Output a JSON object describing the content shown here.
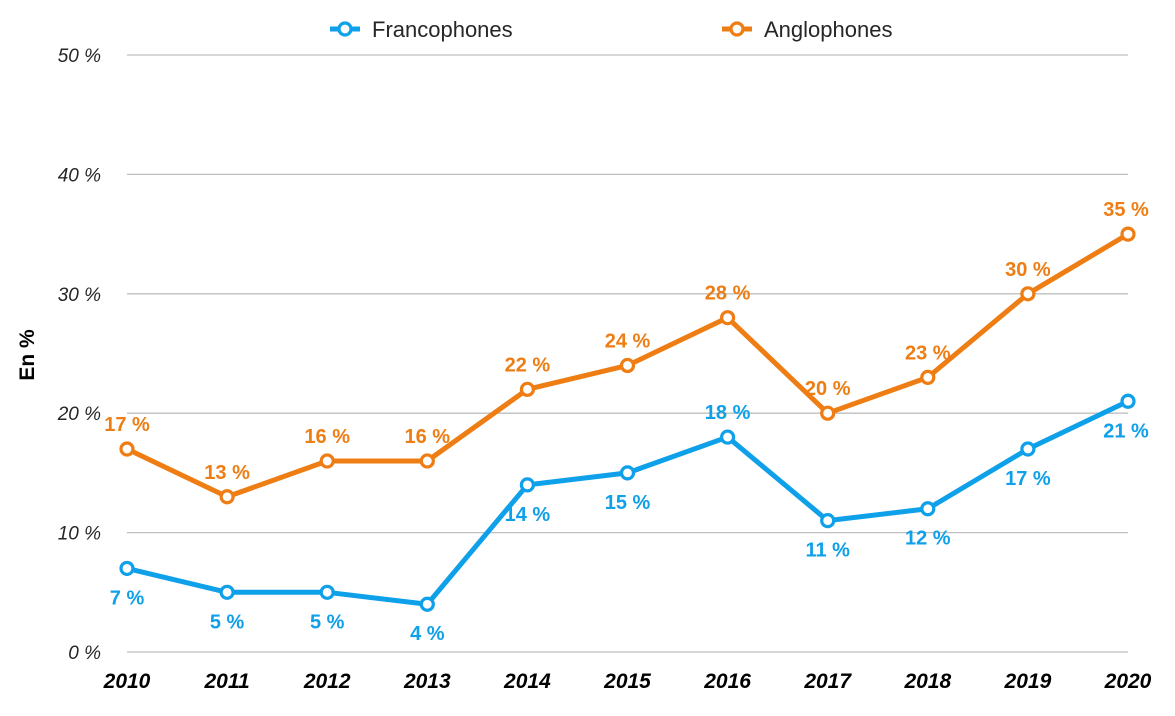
{
  "chart_data": {
    "type": "line",
    "categories": [
      "2010",
      "2011",
      "2012",
      "2013",
      "2014",
      "2015",
      "2016",
      "2017",
      "2018",
      "2019",
      "2020"
    ],
    "series": [
      {
        "name": "Francophones",
        "color": "#0FA0EA",
        "values": [
          7,
          5,
          5,
          4,
          14,
          15,
          18,
          11,
          12,
          17,
          21
        ],
        "labels": [
          "7 %",
          "5 %",
          "5 %",
          "4 %",
          "14 %",
          "15 %",
          "18 %",
          "11 %",
          "12 %",
          "17 %",
          "21 %"
        ],
        "label_position": [
          "below",
          "below",
          "below",
          "below",
          "below",
          "below",
          "above",
          "below",
          "below",
          "below",
          "below"
        ]
      },
      {
        "name": "Anglophones",
        "color": "#EE7D14",
        "values": [
          17,
          13,
          16,
          16,
          22,
          24,
          28,
          20,
          23,
          30,
          35
        ],
        "labels": [
          "17 %",
          "13 %",
          "16 %",
          "16 %",
          "22 %",
          "24 %",
          "28 %",
          "20 %",
          "23 %",
          "30 %",
          "35 %"
        ],
        "label_position": [
          "above",
          "above",
          "above",
          "above",
          "above",
          "above",
          "above",
          "above",
          "above",
          "above",
          "above"
        ]
      }
    ],
    "ylabel": "En %",
    "ylim": [
      0,
      50
    ],
    "yticks": [
      0,
      10,
      20,
      30,
      40,
      50
    ],
    "ytick_labels": [
      "0 %",
      "10 %",
      "20 %",
      "30 %",
      "40 %",
      "50 %"
    ],
    "grid": true,
    "legend_position": "top-center"
  }
}
